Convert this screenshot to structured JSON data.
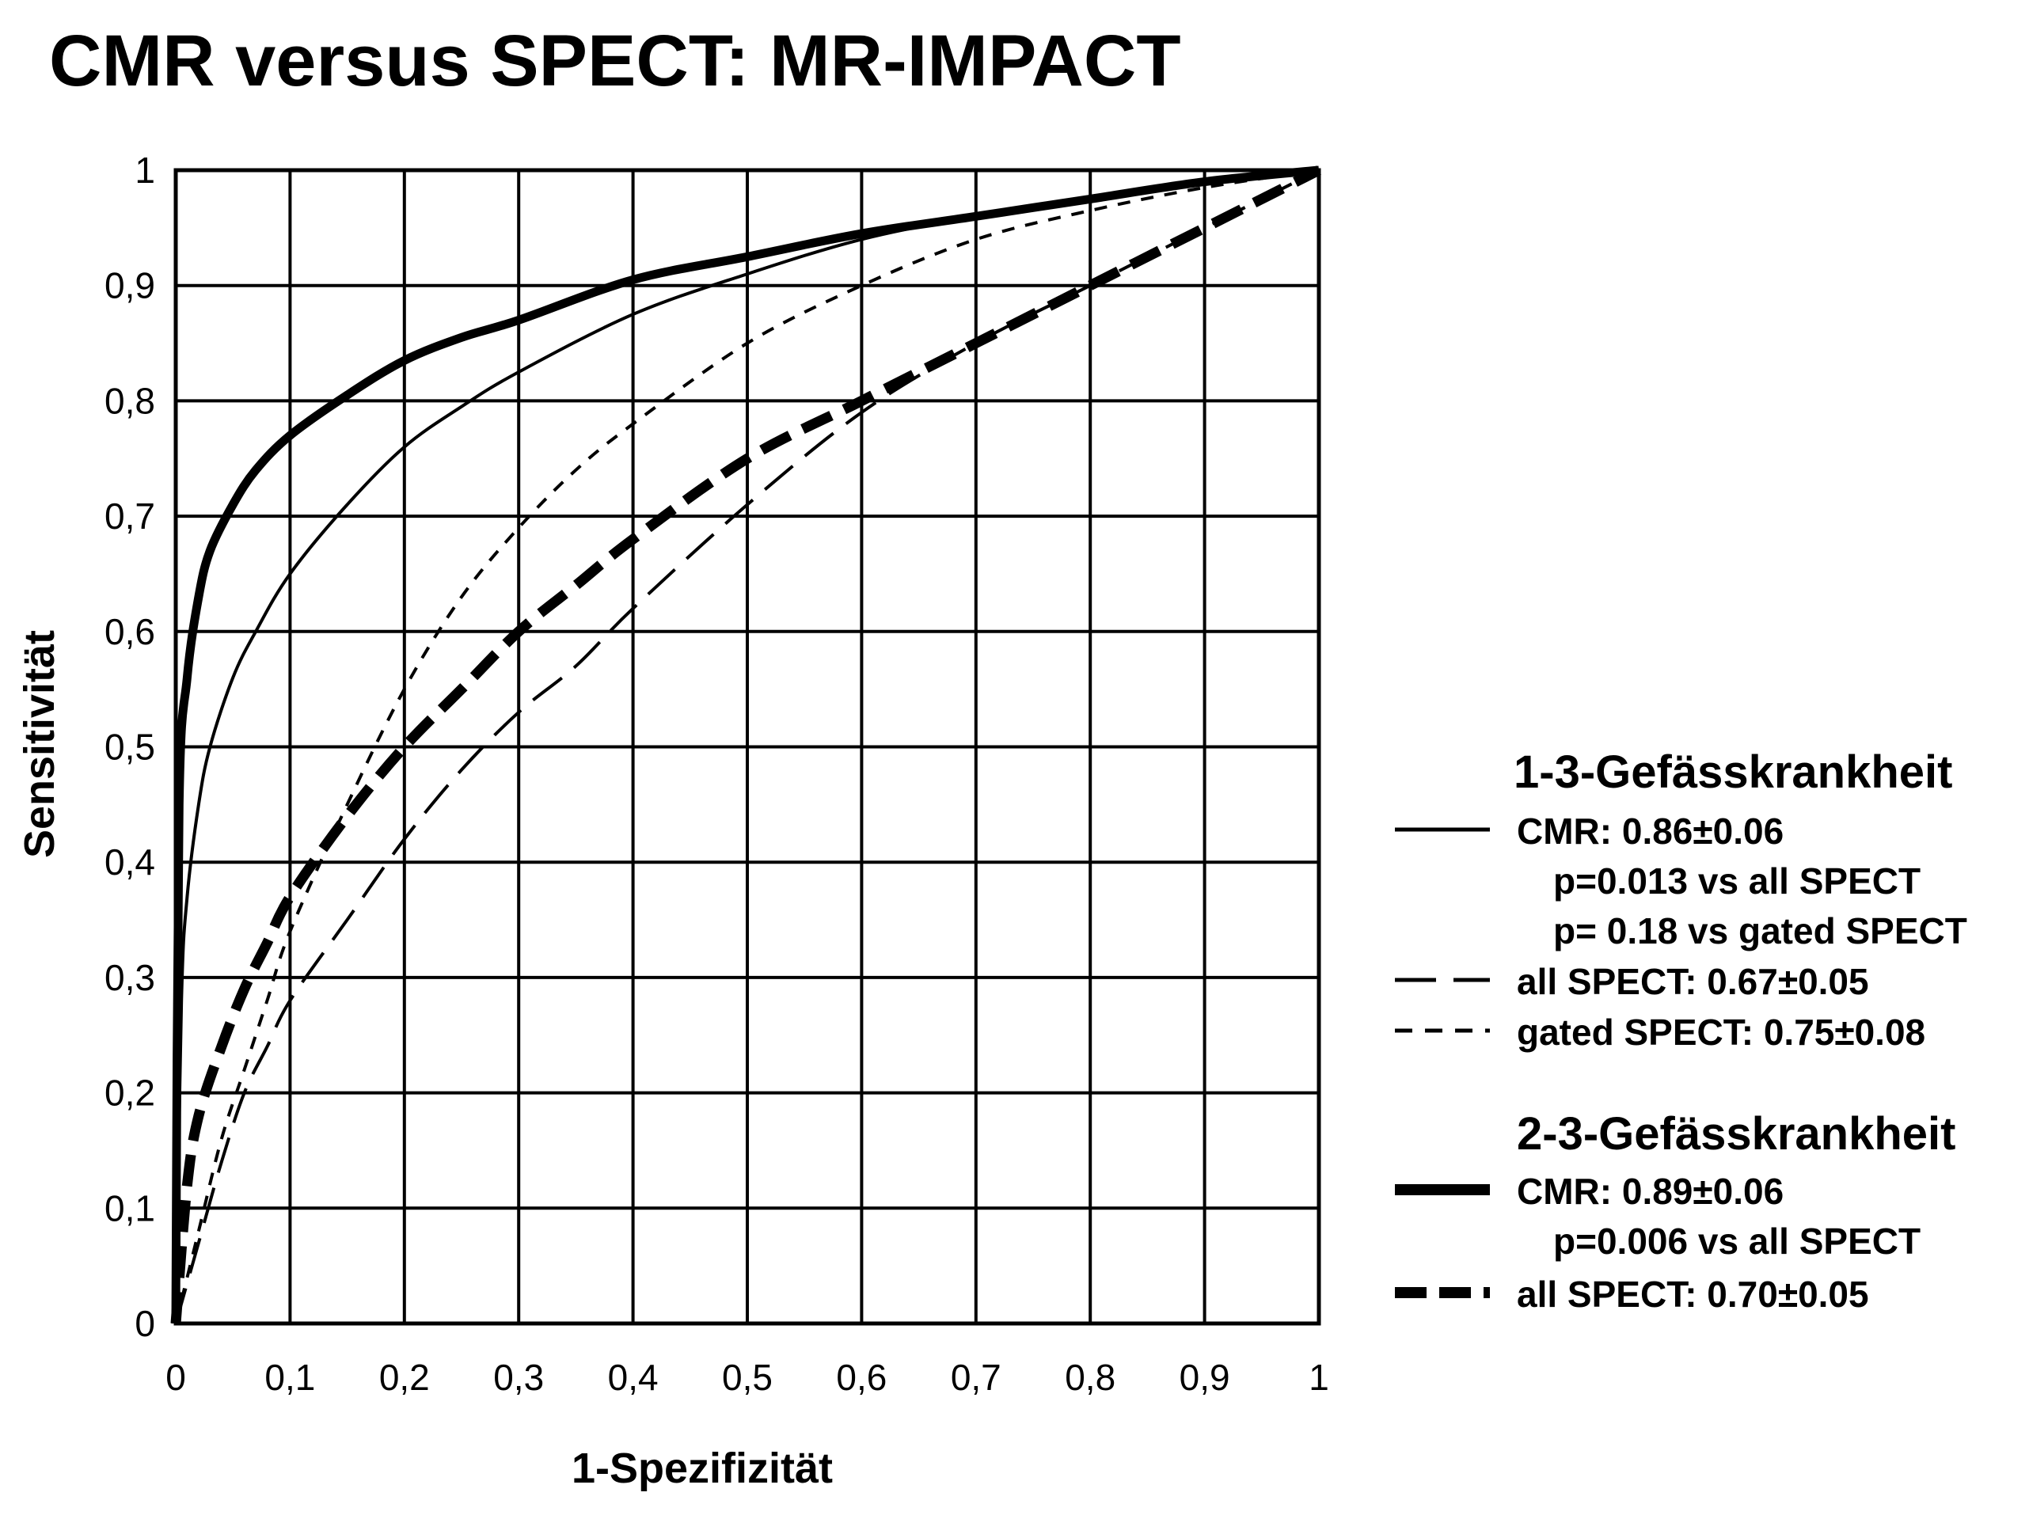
{
  "chart_data": {
    "type": "line",
    "title": "CMR versus SPECT: MR-IMPACT",
    "xlabel": "1-Spezifizität",
    "ylabel": "Sensitivität",
    "xlim": [
      0,
      1
    ],
    "ylim": [
      0,
      1
    ],
    "grid": true,
    "x_ticks": [
      "0",
      "0,1",
      "0,2",
      "0,3",
      "0,4",
      "0,5",
      "0,6",
      "0,7",
      "0,8",
      "0,9",
      "1"
    ],
    "y_ticks": [
      "0",
      "0,1",
      "0,2",
      "0,3",
      "0,4",
      "0,5",
      "0,6",
      "0,7",
      "0,8",
      "0,9",
      "1"
    ],
    "legend_position": "right",
    "series": [
      {
        "name": "CMR (1-3-Gefässkrankheit)",
        "group": "1-3",
        "style": "solid-thin",
        "x": [
          0,
          0.005,
          0.01,
          0.02,
          0.03,
          0.05,
          0.07,
          0.1,
          0.15,
          0.2,
          0.25,
          0.3,
          0.4,
          0.5,
          0.6,
          0.7,
          0.8,
          0.9,
          1.0
        ],
        "y": [
          0,
          0.28,
          0.37,
          0.45,
          0.5,
          0.56,
          0.6,
          0.65,
          0.71,
          0.76,
          0.795,
          0.825,
          0.875,
          0.91,
          0.94,
          0.96,
          0.975,
          0.99,
          1.0
        ]
      },
      {
        "name": "all SPECT (1-3-Gefässkrankheit)",
        "group": "1-3",
        "style": "long-dash-thin",
        "x": [
          0,
          0.02,
          0.04,
          0.06,
          0.08,
          0.1,
          0.15,
          0.2,
          0.25,
          0.3,
          0.35,
          0.4,
          0.5,
          0.6,
          0.7,
          0.8,
          0.9,
          1.0
        ],
        "y": [
          0,
          0.07,
          0.14,
          0.2,
          0.24,
          0.28,
          0.35,
          0.42,
          0.48,
          0.53,
          0.57,
          0.62,
          0.71,
          0.79,
          0.85,
          0.9,
          0.95,
          1.0
        ]
      },
      {
        "name": "gated SPECT (1-3-Gefässkrankheit)",
        "group": "1-3",
        "style": "short-dash-thin",
        "x": [
          0,
          0.02,
          0.04,
          0.06,
          0.08,
          0.1,
          0.15,
          0.2,
          0.25,
          0.3,
          0.35,
          0.4,
          0.5,
          0.6,
          0.7,
          0.8,
          0.9,
          1.0
        ],
        "y": [
          0,
          0.08,
          0.16,
          0.22,
          0.28,
          0.34,
          0.45,
          0.55,
          0.63,
          0.69,
          0.74,
          0.78,
          0.85,
          0.9,
          0.94,
          0.965,
          0.985,
          1.0
        ]
      },
      {
        "name": "CMR (2-3-Gefässkrankheit)",
        "group": "2-3",
        "style": "solid-thick",
        "x": [
          0,
          0.003,
          0.01,
          0.02,
          0.03,
          0.05,
          0.07,
          0.1,
          0.15,
          0.2,
          0.25,
          0.3,
          0.4,
          0.5,
          0.6,
          0.7,
          0.8,
          0.9,
          1.0
        ],
        "y": [
          0,
          0.45,
          0.56,
          0.63,
          0.67,
          0.71,
          0.74,
          0.77,
          0.805,
          0.835,
          0.855,
          0.87,
          0.905,
          0.925,
          0.945,
          0.96,
          0.975,
          0.99,
          1.0
        ]
      },
      {
        "name": "all SPECT (2-3-Gefässkrankheit)",
        "group": "2-3",
        "style": "dash-thick",
        "x": [
          0,
          0.01,
          0.02,
          0.04,
          0.06,
          0.08,
          0.1,
          0.15,
          0.2,
          0.25,
          0.3,
          0.35,
          0.4,
          0.5,
          0.6,
          0.7,
          0.8,
          0.9,
          1.0
        ],
        "y": [
          0,
          0.12,
          0.18,
          0.24,
          0.29,
          0.33,
          0.37,
          0.44,
          0.5,
          0.55,
          0.6,
          0.64,
          0.68,
          0.75,
          0.8,
          0.85,
          0.9,
          0.95,
          1.0
        ]
      }
    ]
  },
  "legend": {
    "group1": {
      "heading": "1-3-Gefässkrankheit",
      "entries": [
        {
          "style": "solid-thin",
          "text": "CMR: 0.86±0.06"
        },
        {
          "style": "none",
          "text": "p=0.013 vs all SPECT"
        },
        {
          "style": "none",
          "text": "p= 0.18 vs gated SPECT"
        },
        {
          "style": "long-dash-thin",
          "text": "all SPECT: 0.67±0.05"
        },
        {
          "style": "short-dash-thin",
          "text": "gated SPECT: 0.75±0.08"
        }
      ]
    },
    "group2": {
      "heading": "2-3-Gefässkrankheit",
      "entries": [
        {
          "style": "solid-thick",
          "text": "CMR: 0.89±0.06"
        },
        {
          "style": "none",
          "text": "p=0.006 vs all SPECT"
        },
        {
          "style": "dash-thick",
          "text": "all SPECT: 0.70±0.05"
        }
      ]
    }
  }
}
